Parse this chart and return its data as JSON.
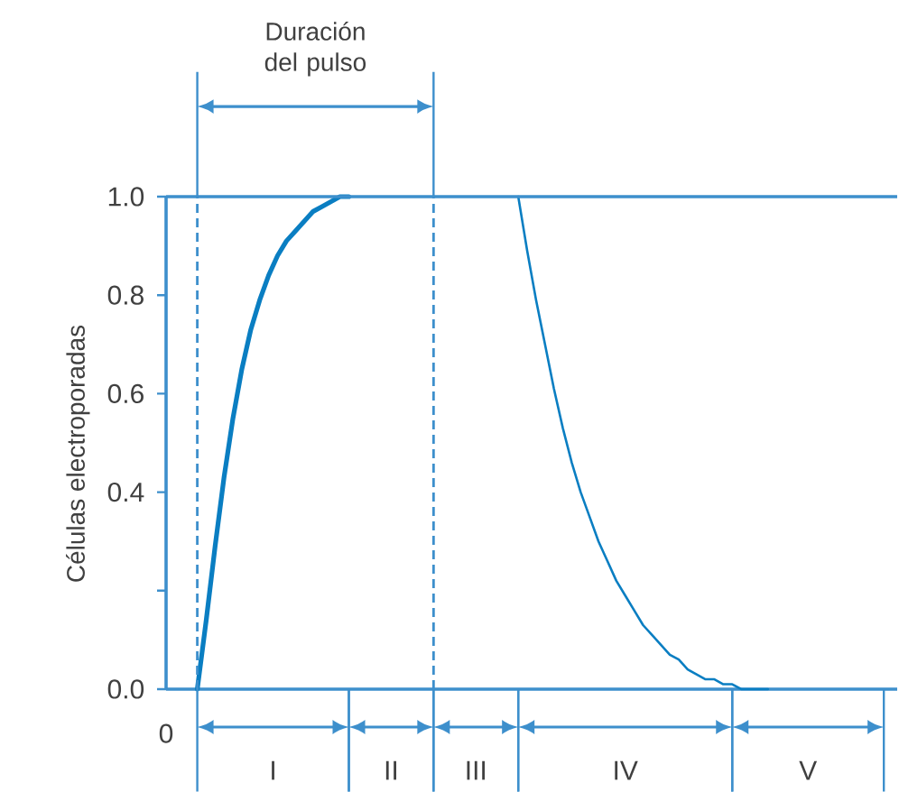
{
  "chart_data": {
    "type": "line",
    "ylabel": "Células electroporadas",
    "categories": [
      null,
      null,
      null,
      null,
      null,
      null,
      null,
      null,
      null,
      null,
      null,
      null,
      null,
      null,
      null,
      null,
      null,
      null,
      null,
      null,
      null,
      null,
      null,
      null,
      null,
      null,
      null,
      null,
      null,
      null,
      null,
      null,
      null,
      null,
      null,
      null,
      null,
      null,
      null,
      null,
      null,
      null,
      null,
      null,
      null,
      null,
      null,
      null,
      null,
      null,
      null,
      null,
      null,
      null,
      null,
      null,
      null,
      null,
      null,
      null,
      null,
      null,
      null,
      null,
      null,
      null,
      null,
      null,
      null,
      null,
      null,
      null,
      null,
      null,
      null,
      null,
      null,
      null,
      null,
      null,
      null,
      null
    ],
    "ylim": [
      0,
      1
    ],
    "yticks": [
      {
        "value": 0,
        "label": "0.0"
      },
      {
        "value": 0.2,
        "label": null
      },
      {
        "value": 0.4,
        "label": "0.4"
      },
      {
        "value": 0.6,
        "label": "0.6"
      },
      {
        "value": 0.8,
        "label": "0.8"
      },
      {
        "value": 1,
        "label": "1.0"
      }
    ],
    "series": [
      {
        "color": "#0a7ec2",
        "values": [
          null,
          null,
          null,
          0,
          0.14,
          0.29,
          0.43,
          0.55,
          0.65,
          0.73,
          0.79,
          0.84,
          0.88,
          0.91,
          0.93,
          0.95,
          0.97,
          0.98,
          0.99,
          1.0,
          1.0,
          null,
          null,
          null,
          null,
          null,
          null,
          null,
          null,
          null,
          null,
          null,
          null,
          null,
          null,
          null,
          null,
          null,
          null,
          null,
          null,
          null,
          null,
          null,
          null,
          null,
          null,
          null,
          null,
          null,
          null,
          null,
          null,
          null,
          null,
          null,
          null,
          null,
          null,
          null,
          null,
          null,
          null,
          null,
          null,
          null,
          null,
          null,
          null,
          null,
          null,
          null,
          null,
          null,
          null,
          null,
          null,
          null,
          null,
          null,
          null,
          null
        ]
      },
      {
        "color": "#0a7ec2",
        "values": [
          null,
          null,
          null,
          null,
          null,
          null,
          null,
          null,
          null,
          null,
          null,
          null,
          null,
          null,
          null,
          null,
          null,
          null,
          null,
          null,
          null,
          null,
          null,
          null,
          null,
          null,
          null,
          null,
          null,
          null,
          null,
          null,
          null,
          null,
          null,
          null,
          null,
          null,
          null,
          1.0,
          0.89,
          0.79,
          0.7,
          0.61,
          0.53,
          0.46,
          0.4,
          0.35,
          0.3,
          0.26,
          0.22,
          0.19,
          0.16,
          0.13,
          0.11,
          0.09,
          0.07,
          0.06,
          0.04,
          0.03,
          0.02,
          0.02,
          0.01,
          0.01,
          0,
          0,
          0,
          0,
          null,
          null,
          null,
          null,
          null,
          null,
          null,
          null,
          null,
          null,
          null,
          null,
          null,
          null
        ]
      }
    ],
    "line_style": "solid",
    "marker": "none",
    "ref_lines": [
      {
        "axis": "y",
        "value": 1.0,
        "line_style": "solid",
        "color": "#3d8fcc"
      }
    ],
    "annotations": [
      "Duración del pulso",
      "0",
      "I",
      "II",
      "III",
      "IV",
      "V"
    ]
  }
}
